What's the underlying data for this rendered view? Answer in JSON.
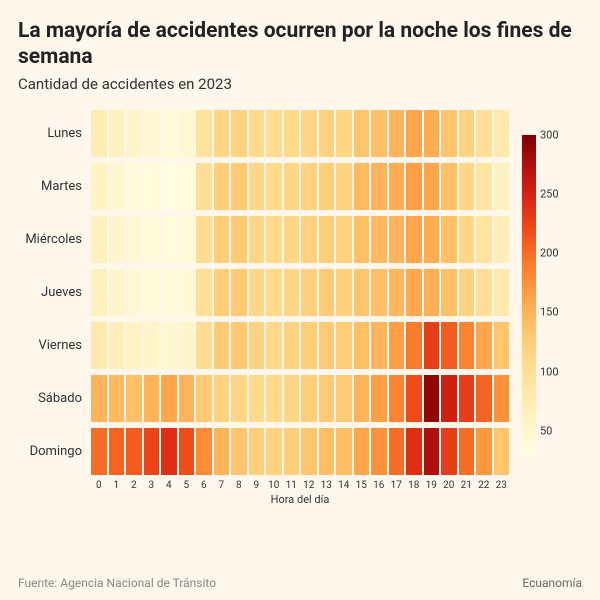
{
  "title": "La mayoría de accidentes ocurren por la noche los fines de semana",
  "subtitle": "Cantidad de accidentes en 2023",
  "x_axis_title": "Hora del día",
  "source": "Fuente: Agencia Nacional de Tránsito",
  "brand": "Ecuanomía",
  "heatmap": {
    "type": "heatmap",
    "days": [
      "Lunes",
      "Martes",
      "Miércoles",
      "Jueves",
      "Viernes",
      "Sábado",
      "Domingo"
    ],
    "hours": [
      0,
      1,
      2,
      3,
      4,
      5,
      6,
      7,
      8,
      9,
      10,
      11,
      12,
      13,
      14,
      15,
      16,
      17,
      18,
      19,
      20,
      21,
      22,
      23
    ],
    "values": [
      [
        75,
        65,
        55,
        45,
        40,
        45,
        95,
        115,
        120,
        110,
        105,
        110,
        115,
        120,
        115,
        135,
        140,
        150,
        160,
        155,
        135,
        120,
        100,
        80
      ],
      [
        60,
        50,
        40,
        35,
        30,
        35,
        100,
        125,
        130,
        115,
        110,
        115,
        120,
        125,
        120,
        145,
        150,
        155,
        165,
        160,
        140,
        115,
        90,
        65
      ],
      [
        65,
        55,
        45,
        40,
        35,
        40,
        105,
        125,
        130,
        115,
        110,
        115,
        120,
        125,
        120,
        140,
        145,
        150,
        160,
        155,
        140,
        115,
        90,
        70
      ],
      [
        65,
        55,
        45,
        40,
        38,
        42,
        100,
        125,
        130,
        115,
        110,
        115,
        122,
        128,
        122,
        135,
        140,
        148,
        158,
        152,
        140,
        120,
        100,
        80
      ],
      [
        80,
        70,
        60,
        55,
        50,
        55,
        105,
        128,
        132,
        118,
        112,
        118,
        125,
        130,
        125,
        140,
        150,
        165,
        190,
        230,
        210,
        185,
        160,
        135
      ],
      [
        150,
        145,
        140,
        150,
        160,
        150,
        130,
        120,
        115,
        110,
        110,
        115,
        125,
        130,
        130,
        150,
        165,
        185,
        220,
        290,
        255,
        230,
        205,
        175
      ],
      [
        200,
        205,
        210,
        225,
        240,
        220,
        180,
        150,
        135,
        125,
        120,
        125,
        135,
        142,
        142,
        160,
        175,
        200,
        240,
        275,
        230,
        200,
        170,
        135
      ]
    ],
    "value_min": 30,
    "value_max": 300,
    "color_scale": {
      "stops": [
        [
          0.0,
          "#fffee0"
        ],
        [
          0.1,
          "#fff4c8"
        ],
        [
          0.2,
          "#ffe8a8"
        ],
        [
          0.3,
          "#ffd98a"
        ],
        [
          0.4,
          "#ffc36a"
        ],
        [
          0.5,
          "#ff9f45"
        ],
        [
          0.6,
          "#fb7a2a"
        ],
        [
          0.7,
          "#f04d1a"
        ],
        [
          0.8,
          "#d92614"
        ],
        [
          0.9,
          "#b5100e"
        ],
        [
          1.0,
          "#7a0202"
        ]
      ]
    },
    "legend_ticks": [
      300,
      250,
      200,
      150,
      100,
      50
    ],
    "background_color": "#fff6ec",
    "cell_gap_color": "#fff6ec",
    "label_fontsize": 13,
    "tick_fontsize": 10,
    "title_fontsize": 21,
    "subtitle_fontsize": 15
  }
}
